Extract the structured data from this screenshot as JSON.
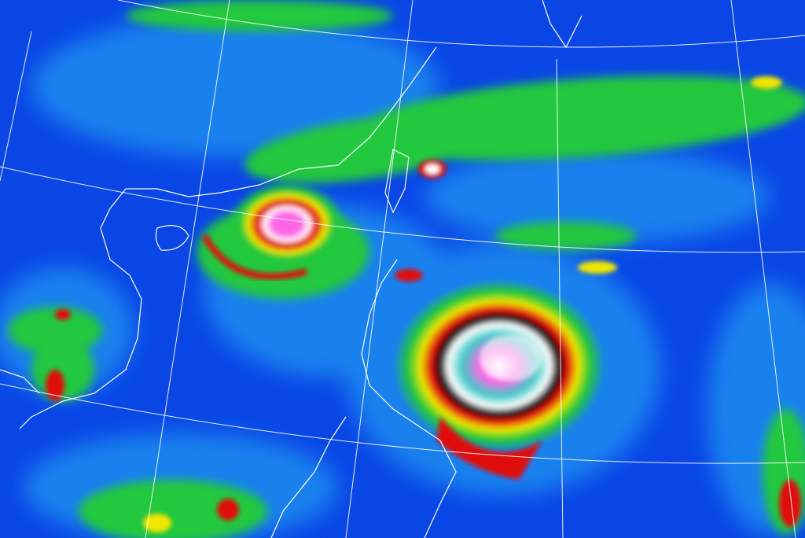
{
  "image": {
    "kind": "enhanced infrared satellite image",
    "palette": {
      "clear_sky": "#0a46e6",
      "low_cloud": "#1e8cf0",
      "mid_cloud": "#22c83c",
      "high_cloud": "#f0e600",
      "deep_convection": "#e01010",
      "very_cold_tops": "#ffffff",
      "coldest_tops": "#ff66e6",
      "gridline": "#ffffff",
      "coastline": "#ffffff"
    }
  }
}
